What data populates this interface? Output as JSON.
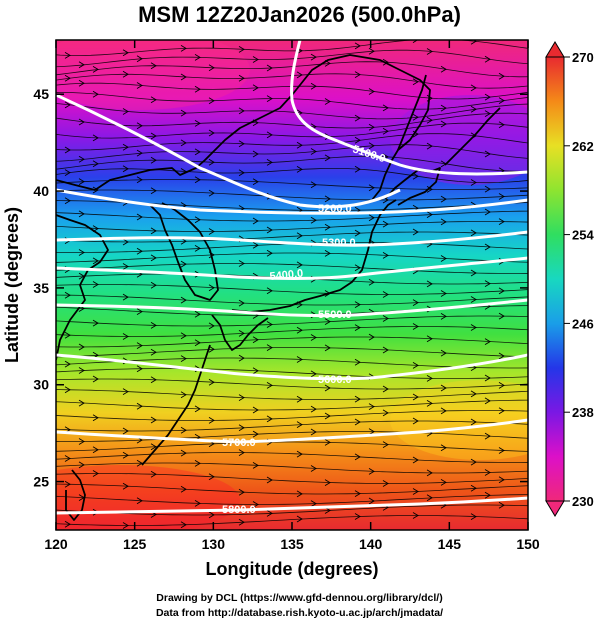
{
  "title": "MSM 12Z20Jan2026 (500.0hPa)",
  "axes": {
    "xlabel": "Longitude (degrees)",
    "ylabel": "Latitude  (degrees)",
    "xlim": [
      120,
      150
    ],
    "ylim": [
      22.5,
      47.8
    ],
    "xticks": [
      "120",
      "125",
      "130",
      "135",
      "140",
      "145",
      "150"
    ],
    "yticks": [
      "25",
      "30",
      "35",
      "40",
      "45"
    ]
  },
  "colorbar": {
    "min": 230,
    "max": 270,
    "ticks": [
      "230",
      "238",
      "246",
      "254",
      "262",
      "270"
    ]
  },
  "contour_labels": [
    "5100.0",
    "5200.0",
    "5300.0",
    "5400.0",
    "5500.0",
    "5600.0",
    "5700.0",
    "5800.0"
  ],
  "credits": {
    "line1": "Drawing by DCL (https://www.gfd-dennou.org/library/dcl/)",
    "line2": "Data from http://database.rish.kyoto-u.ac.jp/arch/jmadata/"
  },
  "colors": {
    "contour": "#ffffff",
    "coastline": "#000000",
    "streamline": "#000000"
  }
}
